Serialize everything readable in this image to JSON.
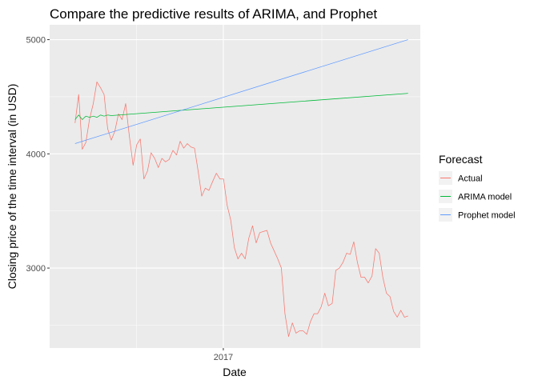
{
  "chart_data": {
    "type": "line",
    "title": "Compare the predictive results of ARIMA, and Prophet",
    "xlabel": "Date",
    "ylabel": "Closing price of the time interval (in USD)",
    "x_ticks": [
      {
        "value": 2017,
        "label": "2017"
      }
    ],
    "y_ticks": [
      {
        "value": 3000,
        "label": "3000"
      },
      {
        "value": 4000,
        "label": "4000"
      },
      {
        "value": 5000,
        "label": "5000"
      }
    ],
    "xlim": [
      2016.18,
      2017.93
    ],
    "ylim": [
      2300,
      5130
    ],
    "grid": true,
    "legend": {
      "title": "Forecast",
      "position": "right"
    },
    "series": [
      {
        "name": "Actual",
        "color": "#F8766D",
        "x": [
          2016.3,
          2016.317,
          2016.334,
          2016.351,
          2016.368,
          2016.386,
          2016.403,
          2016.42,
          2016.437,
          2016.454,
          2016.471,
          2016.488,
          2016.505,
          2016.522,
          2016.539,
          2016.556,
          2016.574,
          2016.591,
          2016.608,
          2016.625,
          2016.642,
          2016.659,
          2016.676,
          2016.693,
          2016.71,
          2016.727,
          2016.744,
          2016.762,
          2016.779,
          2016.796,
          2016.813,
          2016.83,
          2016.847,
          2016.864,
          2016.881,
          2016.898,
          2016.915,
          2016.932,
          2016.95,
          2016.967,
          2016.984,
          2017.001,
          2017.018,
          2017.035,
          2017.052,
          2017.069,
          2017.086,
          2017.103,
          2017.12,
          2017.138,
          2017.155,
          2017.172,
          2017.189,
          2017.206,
          2017.223,
          2017.24,
          2017.257,
          2017.274,
          2017.291,
          2017.308,
          2017.326,
          2017.343,
          2017.36,
          2017.377,
          2017.394,
          2017.411,
          2017.428,
          2017.445,
          2017.462,
          2017.479,
          2017.496,
          2017.514,
          2017.531,
          2017.548,
          2017.565,
          2017.582,
          2017.599,
          2017.616,
          2017.633,
          2017.65,
          2017.667,
          2017.684,
          2017.702,
          2017.719,
          2017.736,
          2017.753,
          2017.77,
          2017.787,
          2017.804,
          2017.821,
          2017.838,
          2017.855,
          2017.872
        ],
        "values": [
          4270,
          4520,
          4040,
          4100,
          4300,
          4440,
          4630,
          4580,
          4520,
          4220,
          4120,
          4200,
          4350,
          4300,
          4440,
          4160,
          3900,
          4080,
          4130,
          3780,
          3850,
          4010,
          3960,
          3880,
          3960,
          3930,
          3950,
          4030,
          3990,
          4110,
          4050,
          4090,
          4060,
          4050,
          3850,
          3630,
          3700,
          3680,
          3760,
          3830,
          3780,
          3780,
          3550,
          3420,
          3180,
          3080,
          3130,
          3080,
          3260,
          3370,
          3220,
          3310,
          3320,
          3330,
          3220,
          3150,
          3080,
          3000,
          2600,
          2400,
          2520,
          2430,
          2450,
          2450,
          2420,
          2530,
          2600,
          2600,
          2660,
          2780,
          2670,
          2690,
          2980,
          3000,
          3050,
          3130,
          3120,
          3230,
          3050,
          2920,
          2920,
          2870,
          2930,
          3170,
          3130,
          2920,
          2780,
          2750,
          2620,
          2570,
          2630,
          2570,
          2580
        ]
      },
      {
        "name": "ARIMA model",
        "color": "#00BA38",
        "x": [
          2016.3,
          2016.317,
          2016.334,
          2016.351,
          2016.368,
          2016.386,
          2016.403,
          2016.42,
          2016.437,
          2016.454,
          2016.471,
          2017.872
        ],
        "values": [
          4300,
          4340,
          4300,
          4330,
          4320,
          4330,
          4320,
          4340,
          4330,
          4340,
          4335,
          4530
        ]
      },
      {
        "name": "Prophet model",
        "color": "#619CFF",
        "x": [
          2016.3,
          2017.872
        ],
        "values": [
          4090,
          5000
        ]
      }
    ]
  }
}
